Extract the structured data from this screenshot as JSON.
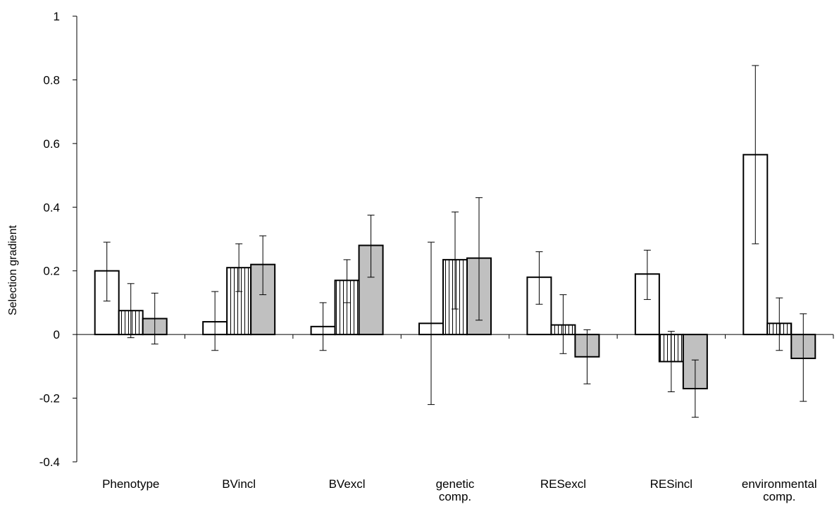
{
  "chart_data": {
    "type": "bar",
    "title": "",
    "xlabel": "",
    "ylabel": "Selection gradient",
    "ylim": [
      -0.4,
      1
    ],
    "yticks": [
      -0.4,
      -0.2,
      0,
      0.2,
      0.4,
      0.6,
      0.8,
      1
    ],
    "ytick_labels": [
      "-0.4",
      "-0.2",
      "0",
      "0.2",
      "0.4",
      "0.6",
      "0.8",
      "1"
    ],
    "grid": false,
    "legend": "none",
    "categories": [
      [
        "Phenotype"
      ],
      [
        "BVincl"
      ],
      [
        "BVexcl"
      ],
      [
        "genetic",
        "comp."
      ],
      [
        "RESexcl"
      ],
      [
        "RESincl"
      ],
      [
        "environmental",
        "comp."
      ]
    ],
    "series": [
      {
        "fill": "white-pattern",
        "values": [
          0.2,
          0.04,
          0.025,
          0.035,
          0.18,
          0.19,
          0.565
        ],
        "error_low": [
          0.105,
          -0.05,
          -0.05,
          -0.22,
          0.095,
          0.11,
          0.285
        ],
        "error_high": [
          0.29,
          0.135,
          0.1,
          0.29,
          0.26,
          0.265,
          0.845
        ]
      },
      {
        "fill": "vertical-stripes-pattern",
        "values": [
          0.075,
          0.21,
          0.17,
          0.235,
          0.03,
          -0.085,
          0.035
        ],
        "error_low": [
          -0.01,
          0.135,
          0.1,
          0.08,
          -0.06,
          -0.18,
          -0.05
        ],
        "error_high": [
          0.16,
          0.285,
          0.235,
          0.385,
          0.125,
          0.01,
          0.115
        ]
      },
      {
        "fill": "gray-pattern",
        "values": [
          0.05,
          0.22,
          0.28,
          0.24,
          -0.07,
          -0.17,
          -0.075
        ],
        "error_low": [
          -0.03,
          0.125,
          0.18,
          0.045,
          -0.155,
          -0.26,
          -0.21
        ],
        "error_high": [
          0.13,
          0.31,
          0.375,
          0.43,
          0.015,
          -0.08,
          0.065
        ]
      }
    ],
    "colors": {
      "white_bar": "#ffffff",
      "gray_bar": "#c0c0c0",
      "stroke": "#000000"
    }
  }
}
